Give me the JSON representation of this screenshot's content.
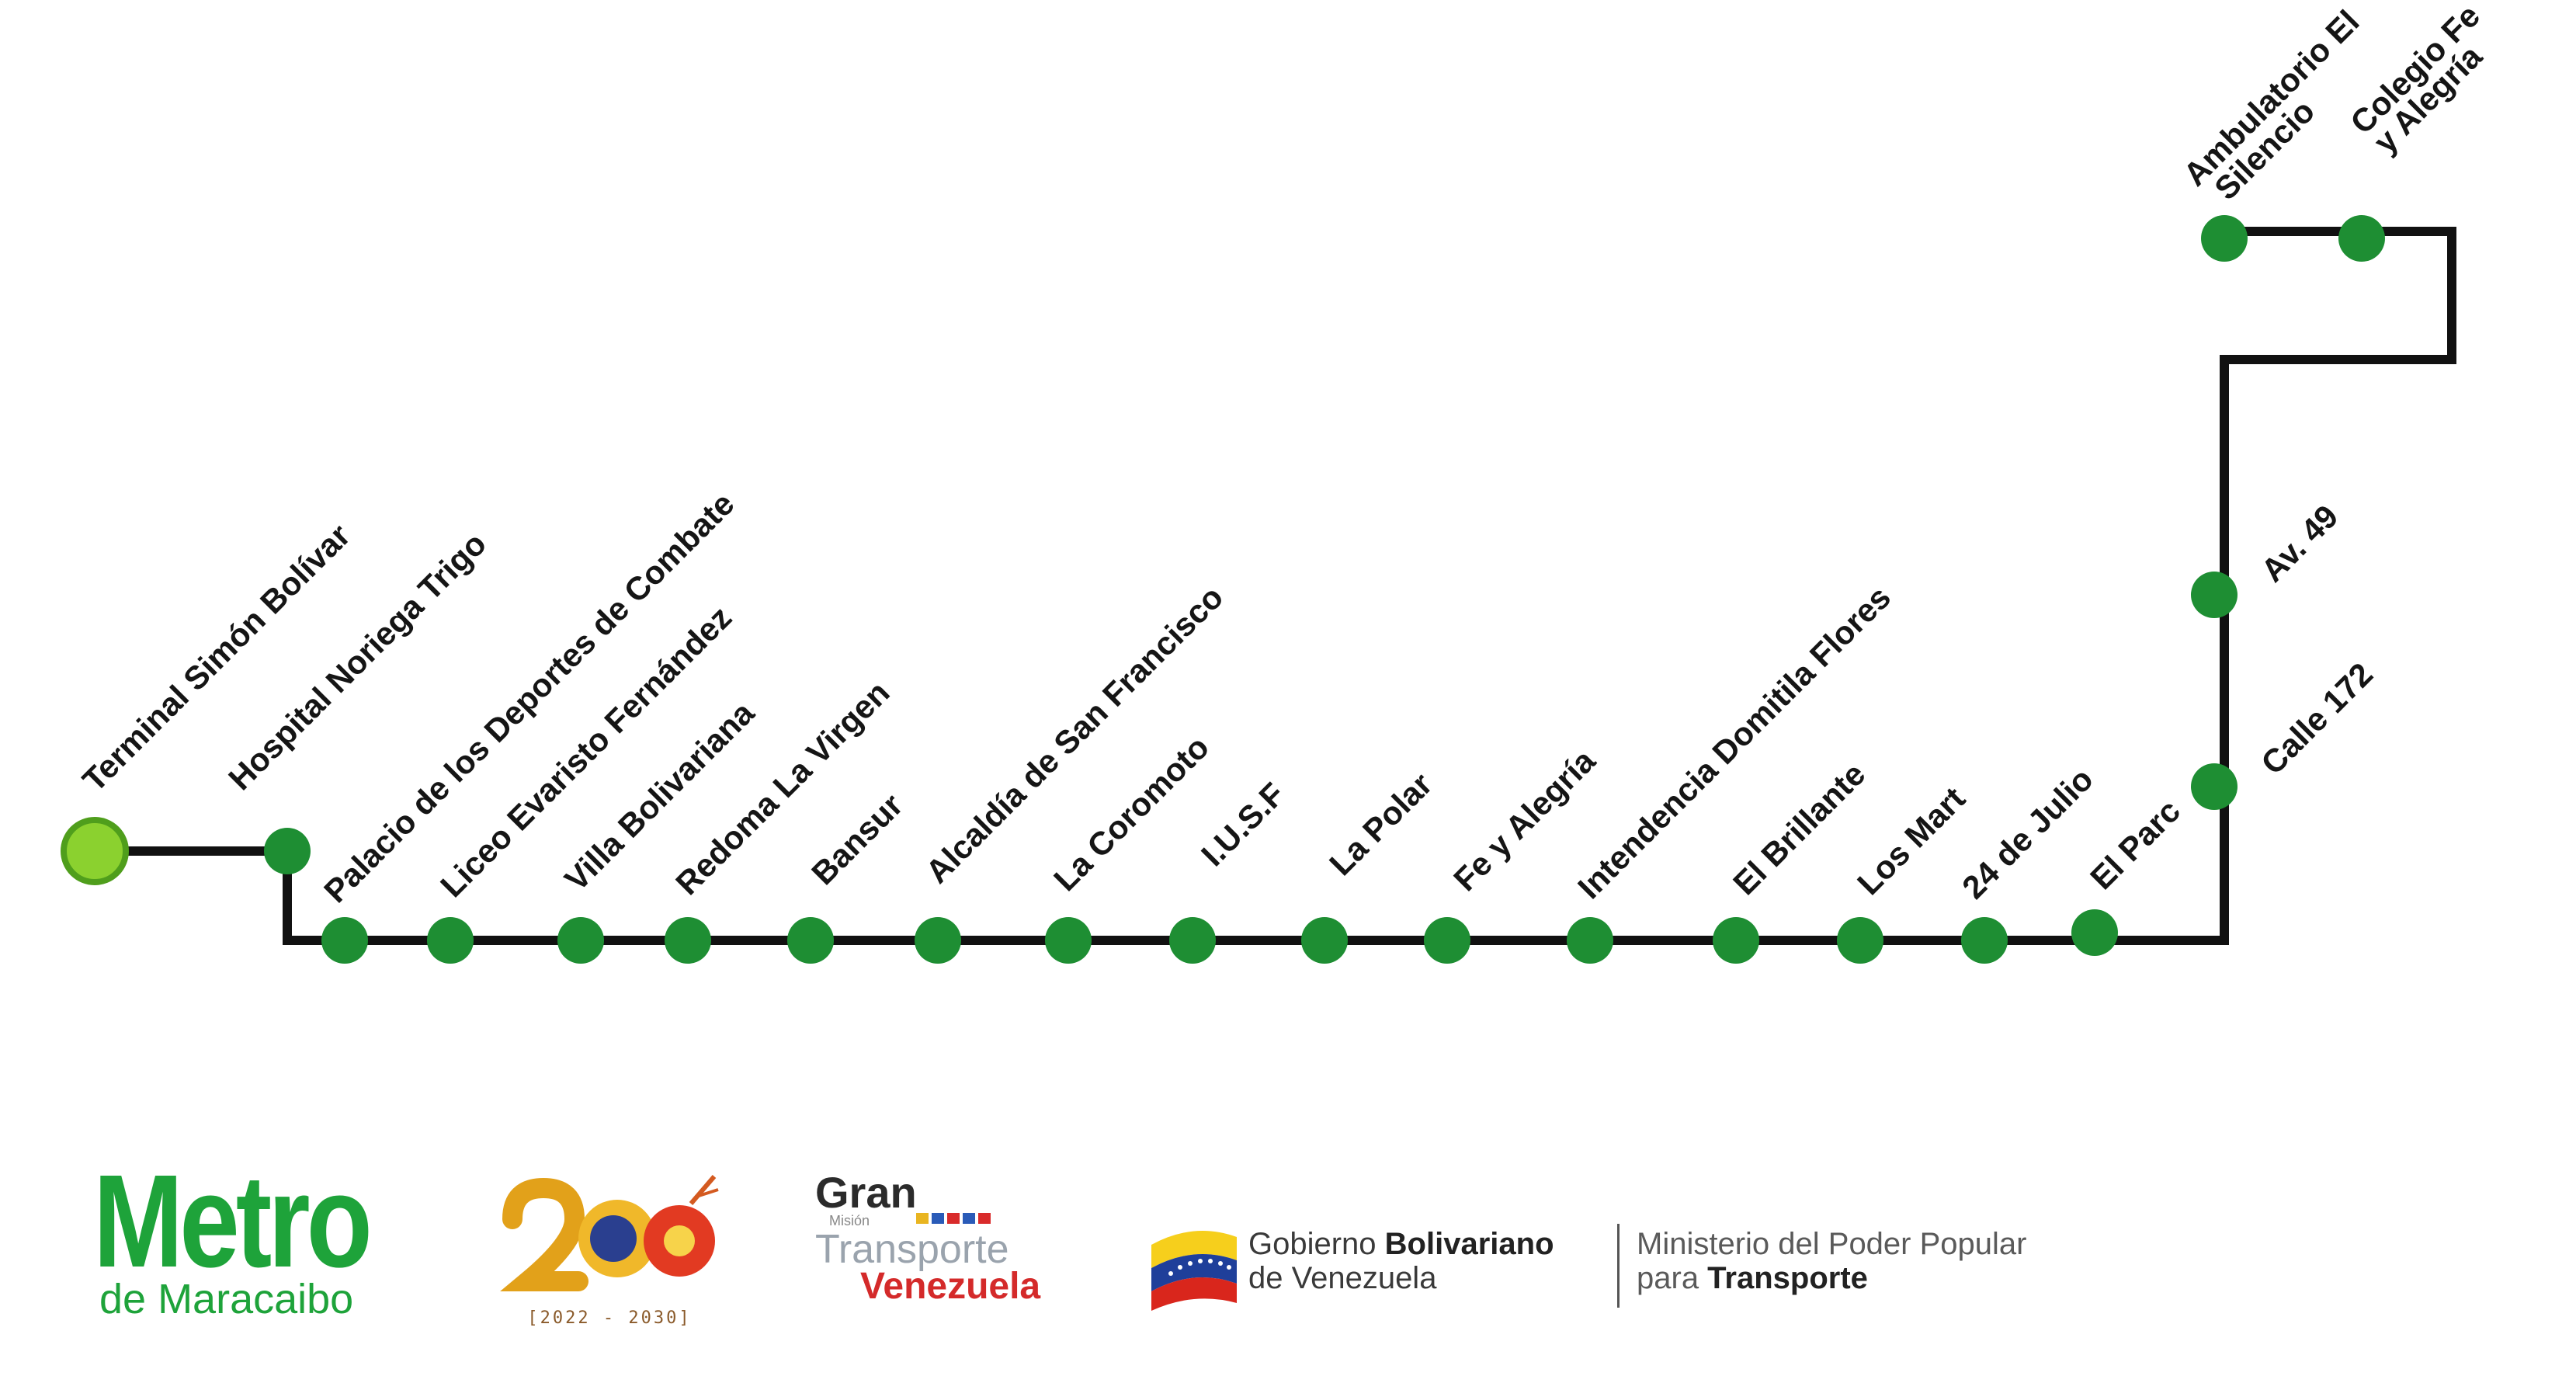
{
  "route": {
    "terminal": {
      "name": "Terminal Simón Bolívar",
      "color": "#8bd12f"
    },
    "line_color": "#111111",
    "stop_color": "#1e8e33",
    "stops": [
      "Hospital Noriega Trigo",
      "Palacio de los Deportes de Combate",
      "Liceo Evaristo Fernández",
      "Villa Bolivariana",
      "Redoma La Virgen",
      "Bansur",
      "Alcaldía de San Francisco",
      "La Coromoto",
      "I.U.S.F",
      "La Polar",
      "Fe y Alegría",
      "Intendencia Domitila Flores",
      "El Brillante",
      "Los Mart",
      "24 de Julio",
      "El Parc",
      "Calle 172",
      "Av. 49",
      "Ambulatorio El Silencio",
      "Colegio Fe y Alegría"
    ]
  },
  "logos": {
    "metro": {
      "word": "Metro",
      "subtitle": "de Maracaibo",
      "color": "#1ea33a"
    },
    "bicentenario": {
      "years": "[2022 - 2030]"
    },
    "gran_mision": {
      "gran": "Gran",
      "mision": "Misión",
      "transporte": "Transporte",
      "venezuela": "Venezuela"
    },
    "gobierno": {
      "line1_regular": "Gobierno ",
      "line1_bold": "Bolivariano",
      "line2": "de Venezuela"
    },
    "ministerio": {
      "line1": "Ministerio del Poder Popular",
      "line2_regular": "para ",
      "line2_bold": "Transporte"
    }
  }
}
